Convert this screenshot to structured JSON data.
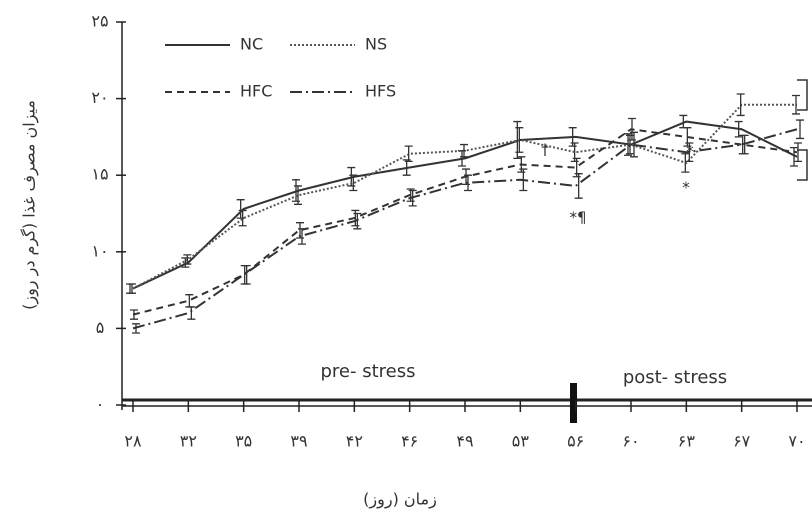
{
  "chart_data": {
    "type": "line",
    "y_label": "میزان مصرف غذا (گرم در روز)",
    "x_label": "زمان (روز)",
    "categories": [
      "۲۸",
      "۳۲",
      "۳۵",
      "۳۹",
      "۴۲",
      "۴۶",
      "۴۹",
      "۵۳",
      "۵۶",
      "۶۰",
      "۶۳",
      "۶۷",
      "۷۰"
    ],
    "ylim": [
      0,
      25
    ],
    "yticks": [
      {
        "value": 0,
        "label": "۰"
      },
      {
        "value": 5,
        "label": "۵"
      },
      {
        "value": 10,
        "label": "۱۰"
      },
      {
        "value": 15,
        "label": "۱۵"
      },
      {
        "value": 20,
        "label": "۲۰"
      },
      {
        "value": 25,
        "label": "۲۵"
      }
    ],
    "series": [
      {
        "name": "NC",
        "color": "#333333",
        "dash": "none",
        "values": [
          7.6,
          9.3,
          12.8,
          14.0,
          14.9,
          15.5,
          16.1,
          17.3,
          17.5,
          17.0,
          18.5,
          18.0,
          16.2
        ],
        "errors": [
          0.3,
          0.3,
          0.6,
          0.7,
          0.6,
          0.5,
          0.5,
          1.2,
          0.6,
          0.7,
          0.4,
          0.5,
          0.6
        ]
      },
      {
        "name": "NS",
        "color": "#555555",
        "dash": "2,2",
        "values": [
          7.6,
          9.5,
          12.2,
          13.7,
          14.5,
          16.4,
          16.6,
          17.3,
          16.5,
          17.0,
          15.8,
          19.6,
          19.6
        ],
        "errors": [
          0.3,
          0.3,
          0.5,
          0.6,
          0.5,
          0.5,
          0.4,
          0.8,
          0.6,
          0.6,
          0.6,
          0.7,
          0.6
        ]
      },
      {
        "name": "HFC",
        "color": "#333333",
        "dash": "7,5",
        "values": [
          5.9,
          6.8,
          8.5,
          11.4,
          12.2,
          13.7,
          14.9,
          15.7,
          15.5,
          18.0,
          17.5,
          17.0,
          16.5
        ],
        "errors": [
          0.3,
          0.4,
          0.6,
          0.5,
          0.5,
          0.4,
          0.5,
          0.5,
          0.6,
          0.7,
          0.6,
          0.6,
          0.6
        ]
      },
      {
        "name": "HFS",
        "color": "#333333",
        "dash": "12,4,2,4",
        "values": [
          5.0,
          6.0,
          8.5,
          11.0,
          12.0,
          13.5,
          14.5,
          14.7,
          14.3,
          17.0,
          16.5,
          17.0,
          18.0
        ],
        "errors": [
          0.3,
          0.4,
          0.6,
          0.5,
          0.5,
          0.5,
          0.5,
          0.7,
          0.8,
          0.8,
          0.6,
          0.6,
          0.6
        ]
      }
    ],
    "annotations": [
      "pre- stress",
      "post- stress",
      "†",
      "*¶",
      "*",
      "*"
    ]
  }
}
